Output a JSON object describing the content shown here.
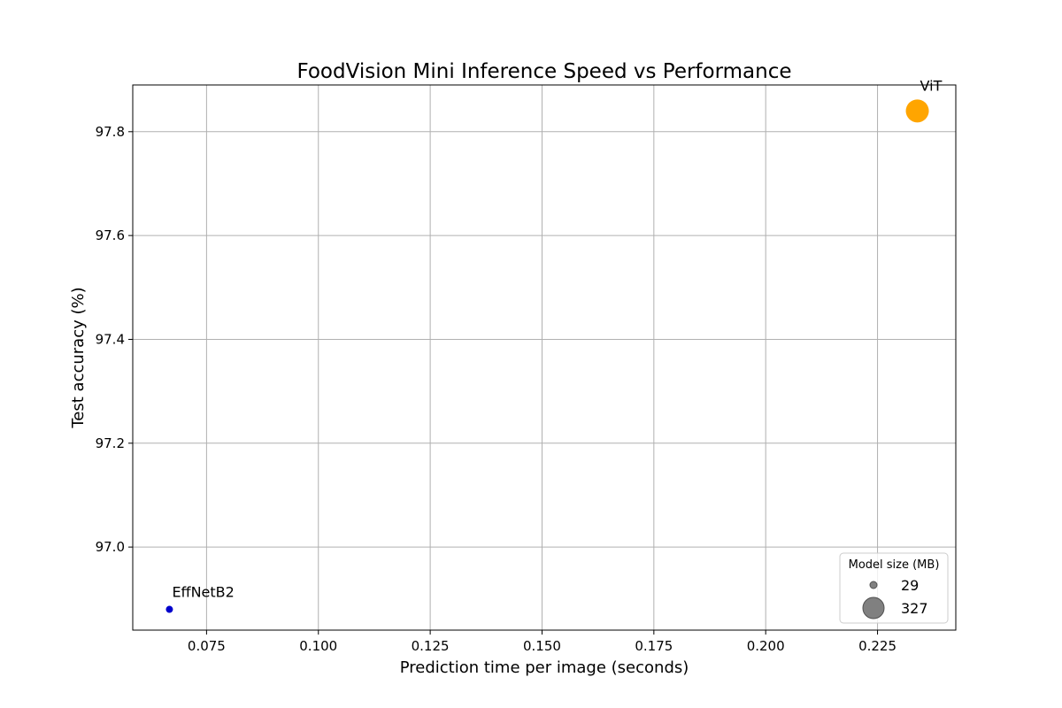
{
  "chart_data": {
    "type": "scatter",
    "title": "FoodVision Mini Inference Speed vs Performance",
    "xlabel": "Prediction time per image (seconds)",
    "ylabel": "Test accuracy (%)",
    "xlim": [
      0.0585,
      0.2425
    ],
    "ylim": [
      96.84,
      97.89
    ],
    "xticks": [
      0.075,
      0.1,
      0.125,
      0.15,
      0.175,
      0.2,
      0.225
    ],
    "xtick_labels": [
      "0.075",
      "0.100",
      "0.125",
      "0.150",
      "0.175",
      "0.200",
      "0.225"
    ],
    "yticks": [
      97.0,
      97.2,
      97.4,
      97.6,
      97.8
    ],
    "ytick_labels": [
      "97.0",
      "97.2",
      "97.4",
      "97.6",
      "97.8"
    ],
    "grid": true,
    "points": [
      {
        "label": "EffNetB2",
        "x": 0.0667,
        "y": 96.88,
        "size_mb": 29,
        "color": "#0000cc"
      },
      {
        "label": "ViT",
        "x": 0.2339,
        "y": 97.84,
        "size_mb": 327,
        "color": "#ffa500"
      }
    ],
    "legend": {
      "title": "Model size (MB)",
      "placement": "lower-right",
      "entries": [
        {
          "label": "29",
          "size_mb": 29
        },
        {
          "label": "327",
          "size_mb": 327
        }
      ],
      "marker_color": "#808080"
    }
  }
}
